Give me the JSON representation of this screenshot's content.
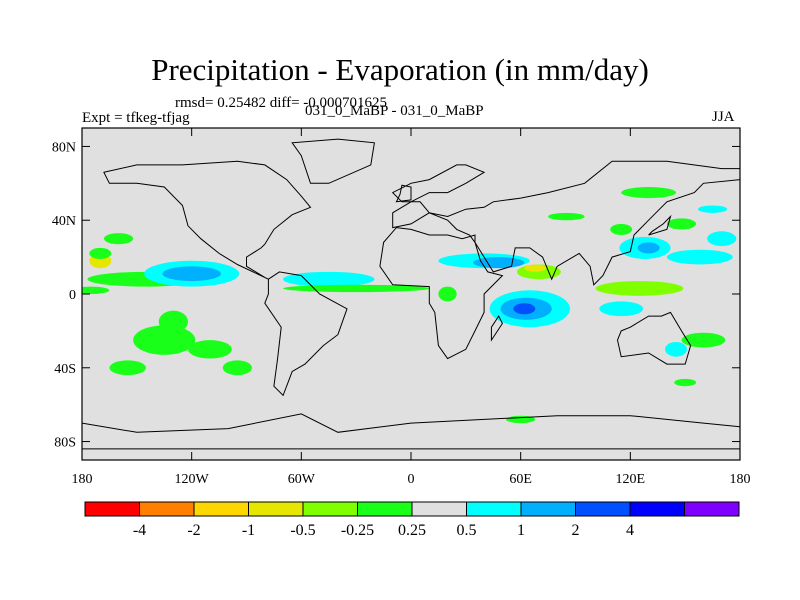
{
  "title": "Precipitation - Evaporation (in mm/day)",
  "stats": "rmsd= 0.25482 diff= -0.000701625",
  "experiment": "Expt = tfkeg-tfjag",
  "comparison": "031_0_MaBP - 031_0_MaBP",
  "season": "JJA",
  "lat_ticks": [
    "80N",
    "40N",
    "0",
    "40S",
    "80S"
  ],
  "lat_values": [
    80,
    40,
    0,
    -40,
    -80
  ],
  "lon_ticks": [
    "180",
    "120W",
    "60W",
    "0",
    "60E",
    "120E",
    "180"
  ],
  "lon_values": [
    -180,
    -120,
    -60,
    0,
    60,
    120,
    180
  ],
  "colorbar": {
    "colors": [
      "#ff0000",
      "#ff8000",
      "#ffd700",
      "#e6e600",
      "#80ff00",
      "#1aff1a",
      "#e0e0e0",
      "#00ffff",
      "#00b0ff",
      "#0050ff",
      "#0000ff",
      "#7f00ff"
    ],
    "labels": [
      "-4",
      "-2",
      "-1",
      "-0.5",
      "-0.25",
      "0.25",
      "0.5",
      "1",
      "2",
      "4"
    ]
  },
  "anomalies": [
    {
      "lon": -145,
      "lat": 8,
      "rx": 32,
      "ry": 4,
      "color": "#1aff1a"
    },
    {
      "lon": -120,
      "lat": 11,
      "rx": 26,
      "ry": 7,
      "color": "#00ffff"
    },
    {
      "lon": -120,
      "lat": 11,
      "rx": 16,
      "ry": 4,
      "color": "#00b0ff"
    },
    {
      "lon": -45,
      "lat": 8,
      "rx": 25,
      "ry": 4,
      "color": "#00ffff"
    },
    {
      "lon": -30,
      "lat": 3,
      "rx": 40,
      "ry": 2,
      "color": "#1aff1a"
    },
    {
      "lon": -175,
      "lat": 2,
      "rx": 10,
      "ry": 2,
      "color": "#1aff1a"
    },
    {
      "lon": -170,
      "lat": 18,
      "rx": 6,
      "ry": 4,
      "color": "#e6e600"
    },
    {
      "lon": -170,
      "lat": 22,
      "rx": 6,
      "ry": 3,
      "color": "#1aff1a"
    },
    {
      "lon": -160,
      "lat": 30,
      "rx": 8,
      "ry": 3,
      "color": "#1aff1a"
    },
    {
      "lon": -130,
      "lat": -15,
      "rx": 8,
      "ry": 6,
      "color": "#1aff1a"
    },
    {
      "lon": -135,
      "lat": -25,
      "rx": 17,
      "ry": 8,
      "color": "#1aff1a"
    },
    {
      "lon": -110,
      "lat": -30,
      "rx": 12,
      "ry": 5,
      "color": "#1aff1a"
    },
    {
      "lon": -95,
      "lat": -40,
      "rx": 8,
      "ry": 4,
      "color": "#1aff1a"
    },
    {
      "lon": -155,
      "lat": -40,
      "rx": 10,
      "ry": 4,
      "color": "#1aff1a"
    },
    {
      "lon": 40,
      "lat": 18,
      "rx": 25,
      "ry": 4,
      "color": "#00ffff"
    },
    {
      "lon": 48,
      "lat": 17,
      "rx": 14,
      "ry": 3,
      "color": "#00b0ff"
    },
    {
      "lon": 70,
      "lat": 12,
      "rx": 12,
      "ry": 4,
      "color": "#80ff00"
    },
    {
      "lon": 68,
      "lat": 14,
      "rx": 6,
      "ry": 2,
      "color": "#e6e600"
    },
    {
      "lon": 65,
      "lat": -8,
      "rx": 22,
      "ry": 10,
      "color": "#00ffff"
    },
    {
      "lon": 63,
      "lat": -8,
      "rx": 14,
      "ry": 6,
      "color": "#00b0ff"
    },
    {
      "lon": 62,
      "lat": -8,
      "rx": 6,
      "ry": 3,
      "color": "#0050ff"
    },
    {
      "lon": 115,
      "lat": -8,
      "rx": 12,
      "ry": 4,
      "color": "#00ffff"
    },
    {
      "lon": 125,
      "lat": 3,
      "rx": 24,
      "ry": 4,
      "color": "#80ff00"
    },
    {
      "lon": 128,
      "lat": 25,
      "rx": 14,
      "ry": 6,
      "color": "#00ffff"
    },
    {
      "lon": 130,
      "lat": 25,
      "rx": 6,
      "ry": 3,
      "color": "#00b0ff"
    },
    {
      "lon": 158,
      "lat": 20,
      "rx": 18,
      "ry": 4,
      "color": "#00ffff"
    },
    {
      "lon": 170,
      "lat": 30,
      "rx": 8,
      "ry": 4,
      "color": "#00ffff"
    },
    {
      "lon": 165,
      "lat": 46,
      "rx": 8,
      "ry": 2,
      "color": "#00ffff"
    },
    {
      "lon": 130,
      "lat": 55,
      "rx": 15,
      "ry": 3,
      "color": "#1aff1a"
    },
    {
      "lon": 148,
      "lat": 38,
      "rx": 8,
      "ry": 3,
      "color": "#1aff1a"
    },
    {
      "lon": 115,
      "lat": 35,
      "rx": 6,
      "ry": 3,
      "color": "#1aff1a"
    },
    {
      "lon": 85,
      "lat": 42,
      "rx": 10,
      "ry": 2,
      "color": "#1aff1a"
    },
    {
      "lon": 160,
      "lat": -25,
      "rx": 12,
      "ry": 4,
      "color": "#1aff1a"
    },
    {
      "lon": 145,
      "lat": -30,
      "rx": 6,
      "ry": 4,
      "color": "#00ffff"
    },
    {
      "lon": 150,
      "lat": -48,
      "rx": 6,
      "ry": 2,
      "color": "#1aff1a"
    },
    {
      "lon": 60,
      "lat": -68,
      "rx": 8,
      "ry": 2,
      "color": "#1aff1a"
    },
    {
      "lon": 20,
      "lat": 0,
      "rx": 5,
      "ry": 4,
      "color": "#1aff1a"
    }
  ],
  "continents": [
    [
      [
        -168,
        66
      ],
      [
        -150,
        70
      ],
      [
        -125,
        70
      ],
      [
        -95,
        72
      ],
      [
        -80,
        70
      ],
      [
        -68,
        62
      ],
      [
        -60,
        53
      ],
      [
        -55,
        47
      ],
      [
        -65,
        43
      ],
      [
        -75,
        35
      ],
      [
        -80,
        27
      ],
      [
        -82,
        25
      ],
      [
        -90,
        20
      ],
      [
        -90,
        15
      ],
      [
        -80,
        9
      ],
      [
        -78,
        8
      ],
      [
        -95,
        16
      ],
      [
        -105,
        22
      ],
      [
        -115,
        30
      ],
      [
        -122,
        37
      ],
      [
        -125,
        48
      ],
      [
        -135,
        58
      ],
      [
        -150,
        60
      ],
      [
        -165,
        60
      ]
    ],
    [
      [
        -78,
        8
      ],
      [
        -72,
        12
      ],
      [
        -60,
        10
      ],
      [
        -50,
        0
      ],
      [
        -35,
        -8
      ],
      [
        -40,
        -22
      ],
      [
        -48,
        -28
      ],
      [
        -58,
        -38
      ],
      [
        -65,
        -42
      ],
      [
        -70,
        -55
      ],
      [
        -75,
        -50
      ],
      [
        -73,
        -35
      ],
      [
        -71,
        -18
      ],
      [
        -80,
        -5
      ],
      [
        -78,
        0
      ]
    ],
    [
      [
        -55,
        60
      ],
      [
        -45,
        60
      ],
      [
        -22,
        70
      ],
      [
        -20,
        82
      ],
      [
        -40,
        84
      ],
      [
        -65,
        82
      ],
      [
        -60,
        75
      ]
    ],
    [
      [
        -10,
        36
      ],
      [
        0,
        38
      ],
      [
        10,
        44
      ],
      [
        20,
        42
      ],
      [
        30,
        46
      ],
      [
        40,
        47
      ],
      [
        45,
        50
      ],
      [
        60,
        52
      ],
      [
        75,
        55
      ],
      [
        95,
        60
      ],
      [
        110,
        72
      ],
      [
        140,
        72
      ],
      [
        170,
        68
      ],
      [
        180,
        68
      ],
      [
        180,
        62
      ],
      [
        160,
        60
      ],
      [
        155,
        55
      ],
      [
        140,
        50
      ],
      [
        130,
        40
      ],
      [
        122,
        32
      ],
      [
        120,
        23
      ],
      [
        110,
        20
      ],
      [
        105,
        10
      ],
      [
        100,
        5
      ],
      [
        98,
        15
      ],
      [
        92,
        22
      ],
      [
        80,
        15
      ],
      [
        77,
        8
      ],
      [
        72,
        20
      ],
      [
        65,
        25
      ],
      [
        57,
        25
      ],
      [
        55,
        15
      ],
      [
        45,
        12
      ],
      [
        35,
        28
      ],
      [
        35,
        32
      ],
      [
        28,
        30
      ],
      [
        20,
        32
      ],
      [
        10,
        32
      ],
      [
        0,
        35
      ],
      [
        -8,
        36
      ],
      [
        -15,
        28
      ],
      [
        -17,
        15
      ],
      [
        -10,
        5
      ],
      [
        10,
        4
      ],
      [
        10,
        -5
      ],
      [
        13,
        -10
      ],
      [
        15,
        -28
      ],
      [
        20,
        -35
      ],
      [
        30,
        -30
      ],
      [
        35,
        -20
      ],
      [
        40,
        -10
      ],
      [
        40,
        0
      ],
      [
        50,
        10
      ],
      [
        42,
        12
      ],
      [
        38,
        18
      ],
      [
        35,
        28
      ],
      [
        32,
        32
      ],
      [
        25,
        35
      ],
      [
        20,
        40
      ],
      [
        10,
        44
      ],
      [
        5,
        50
      ],
      [
        -5,
        50
      ],
      [
        -10,
        55
      ],
      [
        0,
        60
      ],
      [
        10,
        62
      ],
      [
        25,
        70
      ],
      [
        30,
        70
      ],
      [
        40,
        66
      ],
      [
        30,
        60
      ],
      [
        20,
        55
      ],
      [
        10,
        55
      ],
      [
        0,
        50
      ],
      [
        -10,
        44
      ]
    ],
    [
      [
        115,
        -20
      ],
      [
        120,
        -18
      ],
      [
        130,
        -12
      ],
      [
        137,
        -12
      ],
      [
        142,
        -10
      ],
      [
        148,
        -20
      ],
      [
        153,
        -28
      ],
      [
        150,
        -38
      ],
      [
        140,
        -38
      ],
      [
        130,
        -32
      ],
      [
        115,
        -34
      ],
      [
        113,
        -25
      ]
    ],
    [
      [
        -180,
        -70
      ],
      [
        -150,
        -75
      ],
      [
        -100,
        -73
      ],
      [
        -60,
        -65
      ],
      [
        -40,
        -75
      ],
      [
        0,
        -70
      ],
      [
        40,
        -68
      ],
      [
        80,
        -66
      ],
      [
        120,
        -66
      ],
      [
        160,
        -70
      ],
      [
        180,
        -72
      ],
      [
        180,
        -84
      ],
      [
        -180,
        -84
      ]
    ],
    [
      [
        44,
        -25
      ],
      [
        50,
        -16
      ],
      [
        48,
        -12
      ],
      [
        44,
        -18
      ]
    ],
    [
      [
        -8,
        50
      ],
      [
        0,
        51
      ],
      [
        0,
        58
      ],
      [
        -5,
        59
      ],
      [
        -6,
        54
      ]
    ],
    [
      [
        130,
        32
      ],
      [
        140,
        35
      ],
      [
        142,
        42
      ],
      [
        138,
        38
      ],
      [
        132,
        34
      ]
    ]
  ]
}
